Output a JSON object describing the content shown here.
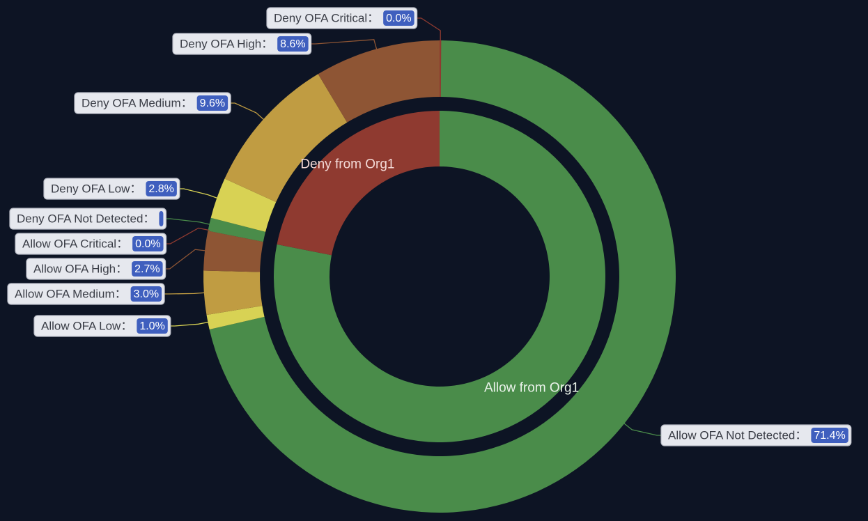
{
  "chart_data": {
    "type": "pie",
    "variant": "nested-donut",
    "inner": [
      {
        "name": "Allow from Org1",
        "value": 78.1,
        "color": "#4a8c4a",
        "label_color": "#e9f2e9"
      },
      {
        "name": "Deny from Org1",
        "value": 21.9,
        "color": "#8f3a30",
        "label_color": "#f3d9d6"
      }
    ],
    "outer": [
      {
        "name": "Allow OFA Not Detected",
        "value": 71.4,
        "pct": "71.4%",
        "color": "#4a8c4a"
      },
      {
        "name": "Allow OFA Low",
        "value": 1.0,
        "pct": "1.0%",
        "color": "#d8d254"
      },
      {
        "name": "Allow OFA Medium",
        "value": 3.0,
        "pct": "3.0%",
        "color": "#c09c42"
      },
      {
        "name": "Allow OFA High",
        "value": 2.7,
        "pct": "2.7%",
        "color": "#8e5534"
      },
      {
        "name": "Allow OFA Critical",
        "value": 0.0,
        "pct": "0.0%",
        "color": "#8f3a30"
      },
      {
        "name": "Deny OFA Not Detected",
        "value": 0.9,
        "pct": "",
        "color": "#4a8c4a"
      },
      {
        "name": "Deny OFA Low",
        "value": 2.8,
        "pct": "2.8%",
        "color": "#d8d254"
      },
      {
        "name": "Deny OFA Medium",
        "value": 9.6,
        "pct": "9.6%",
        "color": "#c09c42"
      },
      {
        "name": "Deny OFA High",
        "value": 8.6,
        "pct": "8.6%",
        "color": "#8e5534"
      },
      {
        "name": "Deny OFA Critical",
        "value": 0.0,
        "pct": "0.0%",
        "color": "#8f3a30"
      }
    ],
    "separator": "："
  }
}
